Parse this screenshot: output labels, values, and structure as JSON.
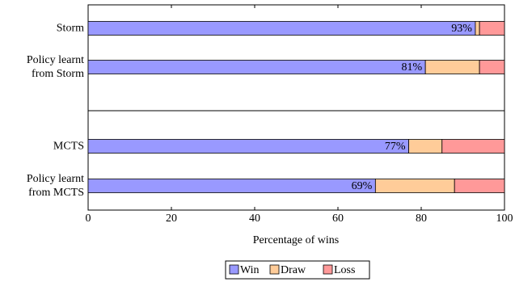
{
  "chart_data": {
    "type": "stacked-bar-horizontal",
    "categories": [
      "Storm",
      "Policy learnt\nfrom Storm",
      "MCTS",
      "Policy learnt\nfrom MCTS"
    ],
    "series": [
      {
        "name": "Win",
        "color": "#9999ff",
        "values": [
          93,
          81,
          77,
          69
        ],
        "value_labels": [
          "93%",
          "81%",
          "77%",
          "69%"
        ]
      },
      {
        "name": "Draw",
        "color": "#ffcc99",
        "values": [
          1,
          13,
          8,
          19
        ]
      },
      {
        "name": "Loss",
        "color": "#ff9999",
        "values": [
          6,
          6,
          15,
          12
        ]
      }
    ],
    "x_label": "Percentage of wins",
    "xlim": [
      0,
      100
    ],
    "xticks": [
      0,
      20,
      40,
      60,
      80,
      100
    ]
  }
}
